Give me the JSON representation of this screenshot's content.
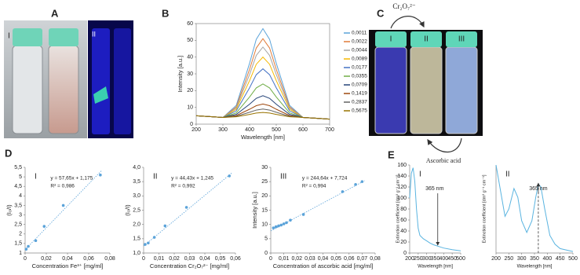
{
  "figure": {
    "panels": [
      "A",
      "B",
      "C",
      "D",
      "E"
    ],
    "photo_a_labels": [
      "I",
      "II"
    ],
    "photo_c_labels": [
      "I",
      "II",
      "III"
    ],
    "reagents": [
      "Cr₂O₇²⁻",
      "Ascorbic acid"
    ]
  },
  "chart_data": [
    {
      "type": "line",
      "xlabel": "Wavelength [nm]",
      "ylabel": "Intensity [a.u.]",
      "xlim": [
        200,
        700
      ],
      "xticks": [
        200,
        300,
        400,
        500,
        600,
        700
      ],
      "ylim": [
        0,
        60
      ],
      "yticks": [
        0,
        10,
        20,
        30,
        40,
        50,
        60
      ],
      "legend": "right",
      "x": [
        200,
        250,
        300,
        350,
        400,
        425,
        450,
        475,
        500,
        550,
        600,
        650,
        700
      ],
      "series": [
        {
          "name": "0,0011",
          "color": "#5ba3d9",
          "values": [
            5,
            4.5,
            4,
            11.2,
            36.3,
            50.6,
            57,
            50.6,
            36.3,
            11.2,
            4,
            3.5,
            3
          ]
        },
        {
          "name": "0,0022",
          "color": "#e07b39",
          "values": [
            5,
            4.5,
            4,
            10.3,
            32.7,
            45.4,
            51,
            45.4,
            32.7,
            10.3,
            4,
            3.5,
            3
          ]
        },
        {
          "name": "0,0044",
          "color": "#a5a5a5",
          "values": [
            5,
            4.5,
            4,
            9.7,
            29.6,
            41,
            46,
            41,
            29.6,
            9.7,
            4,
            3.5,
            3
          ]
        },
        {
          "name": "0,0089",
          "color": "#f5b800",
          "values": [
            5,
            4.5,
            4,
            8.9,
            26,
            35.7,
            40,
            35.7,
            26,
            8.9,
            4,
            3.5,
            3
          ]
        },
        {
          "name": "0,0177",
          "color": "#4472c4",
          "values": [
            5,
            4.5,
            4,
            7.9,
            21.7,
            29.5,
            33,
            29.5,
            21.7,
            7.9,
            4,
            3.5,
            3
          ]
        },
        {
          "name": "0,0355",
          "color": "#70ad47",
          "values": [
            5,
            4.5,
            4,
            6.7,
            16.2,
            21.6,
            24,
            21.6,
            16.2,
            6.7,
            4,
            3.5,
            3
          ]
        },
        {
          "name": "0,0709",
          "color": "#264478",
          "values": [
            5,
            4.5,
            4,
            5.8,
            11.9,
            15.4,
            17,
            15.4,
            11.9,
            5.8,
            4,
            3.5,
            3
          ]
        },
        {
          "name": "0,1419",
          "color": "#9e480e",
          "values": [
            5,
            4.5,
            4,
            5.1,
            8.9,
            11,
            12,
            11,
            8.9,
            5.1,
            4,
            3.5,
            3
          ]
        },
        {
          "name": "0,2837",
          "color": "#636363",
          "values": [
            5,
            4.5,
            4,
            4.7,
            7.1,
            8.4,
            9,
            8.4,
            7.1,
            4.7,
            4,
            3.5,
            3
          ]
        },
        {
          "name": "0,5675",
          "color": "#997300",
          "values": [
            5,
            4.5,
            4,
            4.4,
            5.8,
            6.6,
            7,
            6.6,
            5.8,
            4.4,
            4,
            3.5,
            3
          ]
        }
      ]
    },
    {
      "type": "scatter",
      "panel_label": "I",
      "xlabel": "Concentration Fe³⁺ [mg/ml]",
      "ylabel": "(I₀/I)",
      "color": "#5ba3d9",
      "xlim": [
        0,
        0.08
      ],
      "xticks": [
        0,
        {
          "value": 0.02,
          "label": "0,02"
        },
        {
          "value": 0.04,
          "label": "0,04"
        },
        {
          "value": 0.06,
          "label": "0,06"
        },
        {
          "value": 0.08,
          "label": "0,08"
        }
      ],
      "ylim": [
        1,
        5.5
      ],
      "yticks": [
        1,
        {
          "value": 1.5,
          "label": "1,5"
        },
        2,
        {
          "value": 2.5,
          "label": "2,5"
        },
        3,
        {
          "value": 3.5,
          "label": "3,5"
        },
        4,
        {
          "value": 4.5,
          "label": "4,5"
        },
        5,
        {
          "value": 5.5,
          "label": "5,5"
        }
      ],
      "x": [
        0.001,
        0.003,
        0.01,
        0.018,
        0.036,
        0.071
      ],
      "values": [
        1.2,
        1.35,
        1.65,
        2.4,
        3.5,
        5.1
      ],
      "fit": {
        "x": [
          0,
          0.072
        ],
        "values": [
          1.175,
          5.32
        ]
      },
      "annotations": [
        "y = 57,65x + 1,175",
        "R² = 0,986"
      ]
    },
    {
      "type": "scatter",
      "panel_label": "II",
      "xlabel": "Concentration Cr₂O₇²⁻ [mg/ml]",
      "ylabel": "(I₀/I)",
      "color": "#5ba3d9",
      "xlim": [
        0,
        0.06
      ],
      "xticks": [
        0,
        {
          "value": 0.01,
          "label": "0,01"
        },
        {
          "value": 0.02,
          "label": "0,02"
        },
        {
          "value": 0.03,
          "label": "0,03"
        },
        {
          "value": 0.04,
          "label": "0,04"
        },
        {
          "value": 0.05,
          "label": "0,05"
        },
        {
          "value": 0.06,
          "label": "0,06"
        }
      ],
      "ylim": [
        1,
        4
      ],
      "yticks": [
        {
          "value": 1,
          "label": "1,0"
        },
        {
          "value": 1.5,
          "label": "1,5"
        },
        {
          "value": 2,
          "label": "2,0"
        },
        {
          "value": 2.5,
          "label": "2,5"
        },
        {
          "value": 3,
          "label": "3,0"
        },
        {
          "value": 3.5,
          "label": "3,5"
        },
        {
          "value": 4,
          "label": "4,0"
        }
      ],
      "x": [
        0.001,
        0.003,
        0.007,
        0.014,
        0.028,
        0.056
      ],
      "values": [
        1.3,
        1.35,
        1.55,
        1.95,
        2.6,
        3.7
      ],
      "fit": {
        "x": [
          0,
          0.058
        ],
        "values": [
          1.245,
          3.82
        ]
      },
      "annotations": [
        "y = 44,43x + 1,245",
        "R² = 0,992"
      ]
    },
    {
      "type": "scatter",
      "panel_label": "III",
      "xlabel": "Concentration of ascorbic acid [mg/ml]",
      "ylabel": "Intensity [a.u.]",
      "color": "#5ba3d9",
      "xlim": [
        0,
        0.08
      ],
      "xticks": [
        0,
        {
          "value": 0.01,
          "label": "0,01"
        },
        {
          "value": 0.02,
          "label": "0,02"
        },
        {
          "value": 0.03,
          "label": "0,03"
        },
        {
          "value": 0.04,
          "label": "0,04"
        },
        {
          "value": 0.05,
          "label": "0,05"
        },
        {
          "value": 0.06,
          "label": "0,06"
        },
        {
          "value": 0.07,
          "label": "0,07"
        },
        {
          "value": 0.08,
          "label": "0,08"
        }
      ],
      "ylim": [
        0,
        30
      ],
      "yticks": [
        0,
        5,
        10,
        15,
        20,
        25,
        30
      ],
      "x": [
        0.002,
        0.004,
        0.006,
        0.008,
        0.01,
        0.012,
        0.015,
        0.025,
        0.055,
        0.065,
        0.07
      ],
      "values": [
        8.8,
        9.2,
        9.5,
        9.8,
        10.2,
        10.6,
        11.5,
        13.5,
        21.5,
        24,
        25
      ],
      "fit": {
        "x": [
          0,
          0.072
        ],
        "values": [
          7.724,
          25.34
        ]
      },
      "annotations": [
        "y = 244,64x + 7,724",
        "R² = 0,994"
      ]
    },
    {
      "type": "line",
      "panel_label": "I",
      "xlabel": "Wavelength [nm]",
      "ylabel": "Extinction coefficient [dm³ g⁻¹ cm⁻¹]",
      "color": "#5ab4e0",
      "xlim": [
        200,
        500
      ],
      "xticks": [
        200,
        250,
        300,
        350,
        400,
        450,
        500
      ],
      "ylim": [
        0,
        160
      ],
      "yticks": [
        0,
        20,
        40,
        60,
        80,
        100,
        120,
        140,
        160
      ],
      "x": [
        200,
        210,
        220,
        230,
        240,
        250,
        260,
        280,
        300,
        320,
        340,
        360,
        380,
        400,
        450,
        500
      ],
      "values": [
        100,
        145,
        155,
        130,
        80,
        45,
        32,
        26,
        22,
        18,
        15,
        13,
        11,
        9,
        6,
        4
      ],
      "annotation": {
        "text": "365 nm",
        "x": 365,
        "y": 13,
        "dashed": false
      }
    },
    {
      "type": "line",
      "panel_label": "II",
      "xlabel": "Wavelength [nm]",
      "ylabel": "Extinction coefficient [dm³ g⁻¹ cm⁻¹]",
      "color": "#5ab4e0",
      "xlim": [
        200,
        500
      ],
      "xticks": [
        200,
        250,
        300,
        350,
        400,
        450,
        500
      ],
      "ylim": [
        0,
        60
      ],
      "x": [
        200,
        215,
        235,
        250,
        270,
        285,
        300,
        320,
        340,
        355,
        365,
        375,
        390,
        410,
        430,
        450,
        500
      ],
      "values": [
        60,
        45,
        25,
        30,
        44,
        38,
        22,
        14,
        22,
        38,
        47,
        45,
        30,
        12,
        6,
        3,
        1
      ],
      "annotation": {
        "text": "365 nm",
        "x": 365,
        "y": 47,
        "dashed": true
      }
    }
  ]
}
